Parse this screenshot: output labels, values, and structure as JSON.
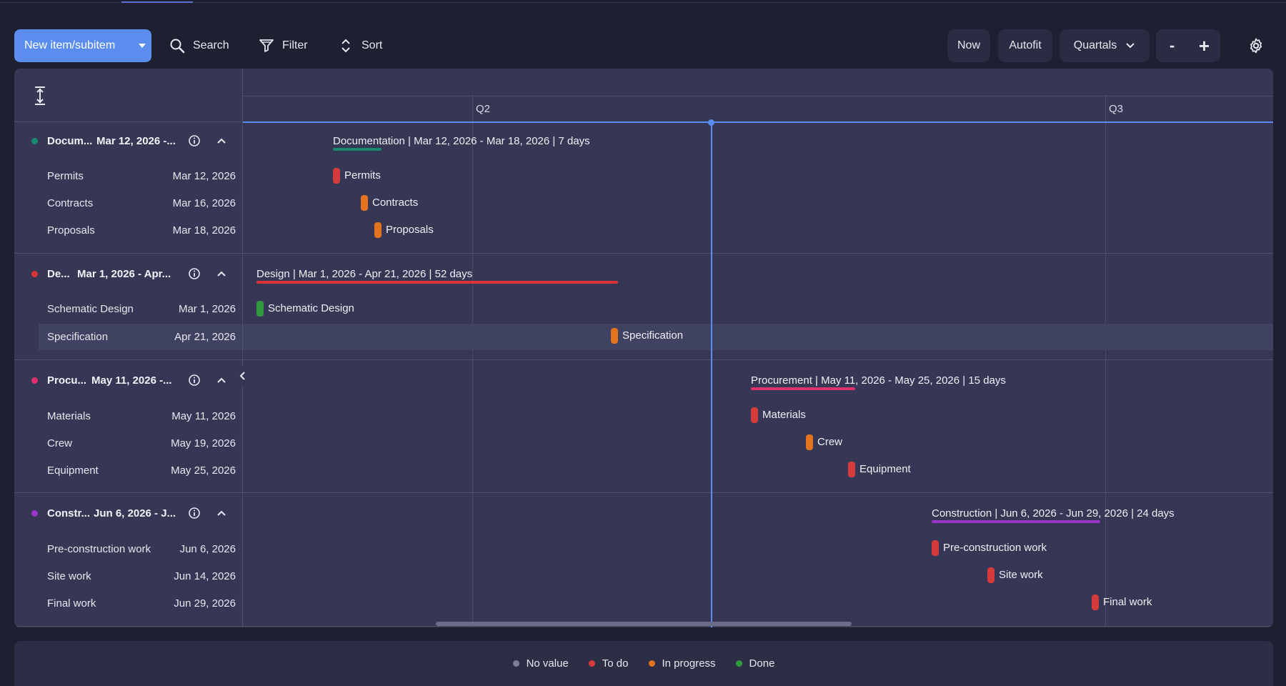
{
  "toolbar": {
    "new_item_label": "New item/subitem",
    "search_label": "Search",
    "filter_label": "Filter",
    "sort_label": "Sort",
    "now_label": "Now",
    "autofit_label": "Autofit",
    "zoom_label": "Quartals",
    "zoom_out_label": "-",
    "zoom_in_label": "+"
  },
  "timeline": {
    "quarters": [
      "Q2",
      "Q3"
    ]
  },
  "colors": {
    "accent": "#5b8def",
    "to_do": "#d63a3a",
    "in_progress": "#e4731d",
    "done": "#2f9a3e",
    "no_value": "#7c8096",
    "documentation": "#1a8a6e",
    "design": "#d6343a",
    "procurement": "#e0306e",
    "construction": "#9b34c8"
  },
  "groups": [
    {
      "name": "Docum...",
      "range": "Mar 12, 2026 -...",
      "bar_title": "Documentation | Mar 12, 2026 - Mar 18, 2026 | 7 days",
      "items": [
        {
          "name": "Permits",
          "date": "Mar 12, 2026",
          "status": "to_do"
        },
        {
          "name": "Contracts",
          "date": "Mar 16, 2026",
          "status": "in_progress"
        },
        {
          "name": "Proposals",
          "date": "Mar 18, 2026",
          "status": "in_progress"
        }
      ]
    },
    {
      "name": "De...",
      "range": "Mar 1, 2026 - Apr...",
      "bar_title": "Design | Mar 1, 2026 - Apr 21, 2026 | 52 days",
      "items": [
        {
          "name": "Schematic Design",
          "date": "Mar 1, 2026",
          "status": "done"
        },
        {
          "name": "Specification",
          "date": "Apr 21, 2026",
          "status": "in_progress"
        }
      ]
    },
    {
      "name": "Procu...",
      "range": "May 11, 2026 -...",
      "bar_title": "Procurement | May 11, 2026 - May 25, 2026 | 15 days",
      "items": [
        {
          "name": "Materials",
          "date": "May 11, 2026",
          "status": "to_do"
        },
        {
          "name": "Crew",
          "date": "May 19, 2026",
          "status": "in_progress"
        },
        {
          "name": "Equipment",
          "date": "May 25, 2026",
          "status": "to_do"
        }
      ]
    },
    {
      "name": "Constr...",
      "range": "Jun 6, 2026 - J...",
      "bar_title": "Construction | Jun 6, 2026 - Jun 29, 2026 | 24 days",
      "items": [
        {
          "name": "Pre-construction work",
          "date": "Jun 6, 2026",
          "status": "to_do"
        },
        {
          "name": "Site work",
          "date": "Jun 14, 2026",
          "status": "to_do"
        },
        {
          "name": "Final work",
          "date": "Jun 29, 2026",
          "status": "to_do"
        }
      ]
    }
  ],
  "legend": {
    "no_value": "No value",
    "to_do": "To do",
    "in_progress": "In progress",
    "done": "Done"
  }
}
